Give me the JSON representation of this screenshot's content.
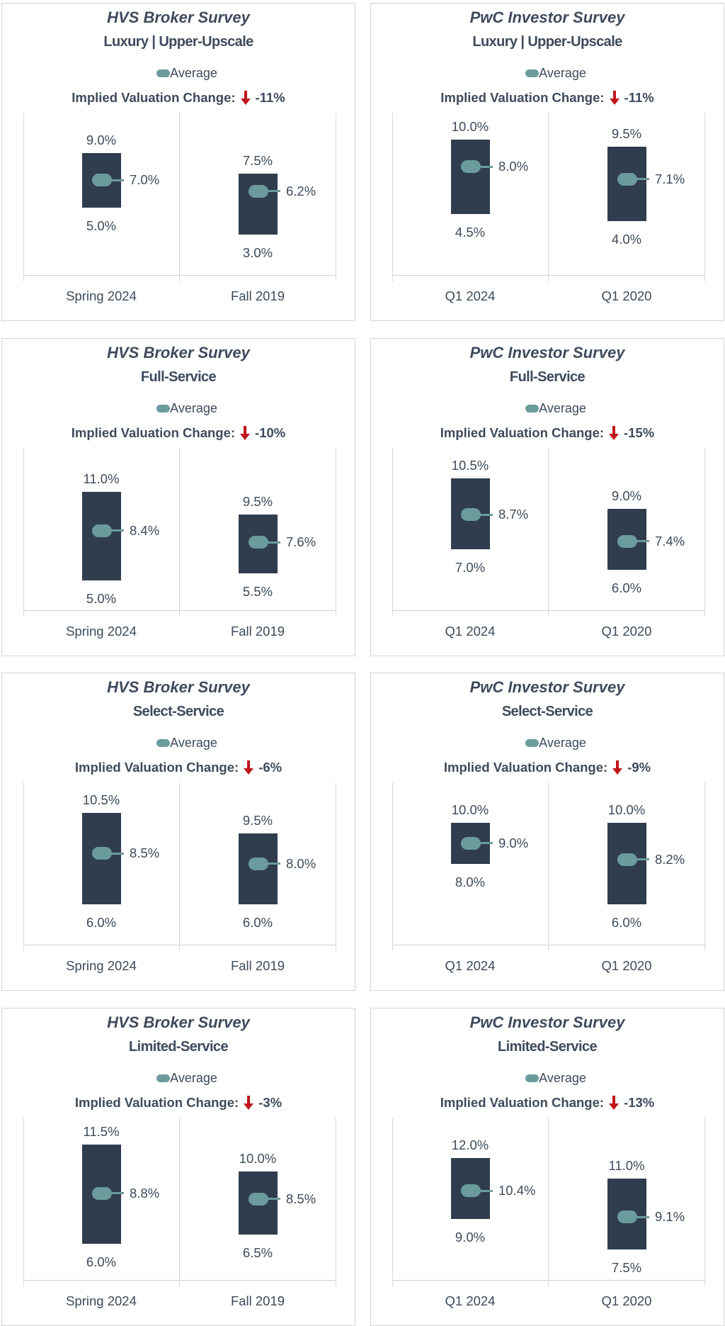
{
  "colors": {
    "bar": "#2f3d4e",
    "average_marker": "#6b9b9d",
    "text": "#3e4a5c",
    "down_arrow": "#c0161b",
    "gridline": "#d9d9d9"
  },
  "chart_data": [
    {
      "type": "bar",
      "title": "HVS Broker Survey",
      "subtitle": "Luxury | Upper-Upscale",
      "legend": [
        "Average"
      ],
      "legend_placement": "top-center",
      "annotation": {
        "label": "Implied Valuation Change:",
        "value": "-11%",
        "direction": "down",
        "icon": "down-arrow-icon"
      },
      "categories": [
        "Spring 2024",
        "Fall 2019"
      ],
      "high": [
        9.0,
        7.5
      ],
      "low": [
        5.0,
        3.0
      ],
      "average": [
        7.0,
        6.2
      ],
      "high_labels": [
        "9.0%",
        "7.5%"
      ],
      "low_labels": [
        "5.0%",
        "3.0%"
      ],
      "average_labels": [
        "7.0%",
        "6.2%"
      ],
      "ylim": [
        0,
        12
      ],
      "grid": "vertical category separators"
    },
    {
      "type": "bar",
      "title": "PwC Investor Survey",
      "subtitle": "Luxury | Upper-Upscale",
      "legend": [
        "Average"
      ],
      "legend_placement": "top-center",
      "annotation": {
        "label": "Implied Valuation Change:",
        "value": "-11%",
        "direction": "down",
        "icon": "down-arrow-icon"
      },
      "categories": [
        "Q1 2024",
        "Q1 2020"
      ],
      "high": [
        10.0,
        9.5
      ],
      "low": [
        4.5,
        4.0
      ],
      "average": [
        8.0,
        7.1
      ],
      "high_labels": [
        "10.0%",
        "9.5%"
      ],
      "low_labels": [
        "4.5%",
        "4.0%"
      ],
      "average_labels": [
        "8.0%",
        "7.1%"
      ],
      "ylim": [
        0,
        12
      ],
      "grid": "vertical category separators"
    },
    {
      "type": "bar",
      "title": "HVS Broker Survey",
      "subtitle": "Full-Service",
      "legend": [
        "Average"
      ],
      "legend_placement": "top-center",
      "annotation": {
        "label": "Implied Valuation Change:",
        "value": "-10%",
        "direction": "down",
        "icon": "down-arrow-icon"
      },
      "categories": [
        "Spring 2024",
        "Fall 2019"
      ],
      "high": [
        11.0,
        9.5
      ],
      "low": [
        5.0,
        5.5
      ],
      "average": [
        8.4,
        7.6
      ],
      "high_labels": [
        "11.0%",
        "9.5%"
      ],
      "low_labels": [
        "5.0%",
        "5.5%"
      ],
      "average_labels": [
        "8.4%",
        "7.6%"
      ],
      "ylim": [
        3,
        14
      ],
      "grid": "vertical category separators"
    },
    {
      "type": "bar",
      "title": "PwC Investor Survey",
      "subtitle": "Full-Service",
      "legend": [
        "Average"
      ],
      "legend_placement": "top-center",
      "annotation": {
        "label": "Implied Valuation Change:",
        "value": "-15%",
        "direction": "down",
        "icon": "down-arrow-icon"
      },
      "categories": [
        "Q1 2024",
        "Q1 2020"
      ],
      "high": [
        10.5,
        9.0
      ],
      "low": [
        7.0,
        6.0
      ],
      "average": [
        8.7,
        7.4
      ],
      "high_labels": [
        "10.5%",
        "9.0%"
      ],
      "low_labels": [
        "7.0%",
        "6.0%"
      ],
      "average_labels": [
        "8.7%",
        "7.4%"
      ],
      "ylim": [
        4,
        12
      ],
      "grid": "vertical category separators"
    },
    {
      "type": "bar",
      "title": "HVS Broker Survey",
      "subtitle": "Select-Service",
      "legend": [
        "Average"
      ],
      "legend_placement": "top-center",
      "annotation": {
        "label": "Implied Valuation Change:",
        "value": "-6%",
        "direction": "down",
        "icon": "down-arrow-icon"
      },
      "categories": [
        "Spring 2024",
        "Fall 2019"
      ],
      "high": [
        10.5,
        9.5
      ],
      "low": [
        6.0,
        6.0
      ],
      "average": [
        8.5,
        8.0
      ],
      "high_labels": [
        "10.5%",
        "9.5%"
      ],
      "low_labels": [
        "6.0%",
        "6.0%"
      ],
      "average_labels": [
        "8.5%",
        "8.0%"
      ],
      "ylim": [
        4,
        12
      ],
      "grid": "vertical category separators"
    },
    {
      "type": "bar",
      "title": "PwC Investor Survey",
      "subtitle": "Select-Service",
      "legend": [
        "Average"
      ],
      "legend_placement": "top-center",
      "annotation": {
        "label": "Implied Valuation Change:",
        "value": "-9%",
        "direction": "down",
        "icon": "down-arrow-icon"
      },
      "categories": [
        "Q1 2024",
        "Q1 2020"
      ],
      "high": [
        10.0,
        10.0
      ],
      "low": [
        8.0,
        6.0
      ],
      "average": [
        9.0,
        8.2
      ],
      "high_labels": [
        "10.0%",
        "10.0%"
      ],
      "low_labels": [
        "8.0%",
        "6.0%"
      ],
      "average_labels": [
        "9.0%",
        "8.2%"
      ],
      "ylim": [
        4,
        12
      ],
      "grid": "vertical category separators"
    },
    {
      "type": "bar",
      "title": "HVS Broker Survey",
      "subtitle": "Limited-Service",
      "legend": [
        "Average"
      ],
      "legend_placement": "top-center",
      "annotation": {
        "label": "Implied Valuation Change:",
        "value": "-3%",
        "direction": "down",
        "icon": "down-arrow-icon"
      },
      "categories": [
        "Spring 2024",
        "Fall 2019"
      ],
      "high": [
        11.5,
        10.0
      ],
      "low": [
        6.0,
        6.5
      ],
      "average": [
        8.8,
        8.5
      ],
      "high_labels": [
        "11.5%",
        "10.0%"
      ],
      "low_labels": [
        "6.0%",
        "6.5%"
      ],
      "average_labels": [
        "8.8%",
        "8.5%"
      ],
      "ylim": [
        4,
        13
      ],
      "grid": "vertical category separators"
    },
    {
      "type": "bar",
      "title": "PwC Investor Survey",
      "subtitle": "Limited-Service",
      "legend": [
        "Average"
      ],
      "legend_placement": "top-center",
      "annotation": {
        "label": "Implied Valuation Change:",
        "value": "-13%",
        "direction": "down",
        "icon": "down-arrow-icon"
      },
      "categories": [
        "Q1 2024",
        "Q1 2020"
      ],
      "high": [
        12.0,
        11.0
      ],
      "low": [
        9.0,
        7.5
      ],
      "average": [
        10.4,
        9.1
      ],
      "high_labels": [
        "12.0%",
        "11.0%"
      ],
      "low_labels": [
        "9.0%",
        "7.5%"
      ],
      "average_labels": [
        "10.4%",
        "9.1%"
      ],
      "ylim": [
        6,
        14
      ],
      "grid": "vertical category separators"
    }
  ]
}
